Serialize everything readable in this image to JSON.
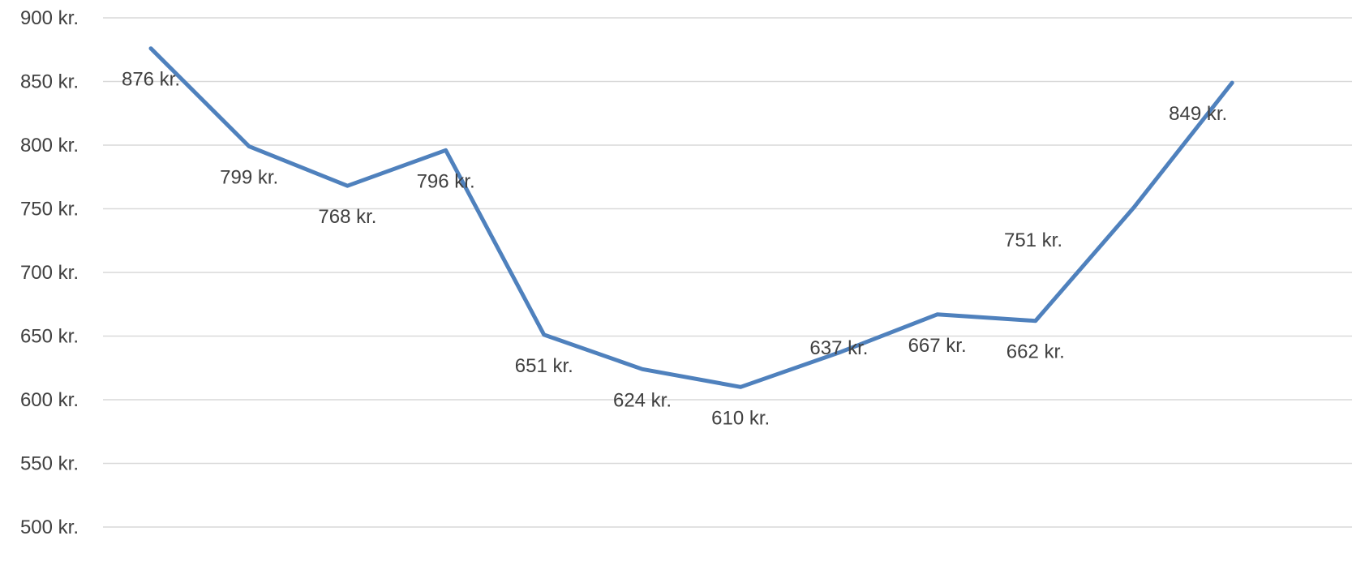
{
  "chart_data": {
    "type": "line",
    "title": "",
    "xlabel": "",
    "ylabel": "",
    "ylim": [
      500,
      900
    ],
    "ytick_step": 50,
    "ytick_suffix": " kr.",
    "grid": true,
    "legend": "none",
    "series": [
      {
        "color": "#4f81bd",
        "values": [
          876,
          799,
          768,
          796,
          651,
          624,
          610,
          637,
          667,
          662,
          751,
          849
        ],
        "labels": [
          "876 kr.",
          "799 kr.",
          "768 kr.",
          "796 kr.",
          "651 kr.",
          "624 kr.",
          "610 kr.",
          "637 kr.",
          "667 kr.",
          "662 kr.",
          "751 kr.",
          "849 kr."
        ]
      }
    ]
  }
}
